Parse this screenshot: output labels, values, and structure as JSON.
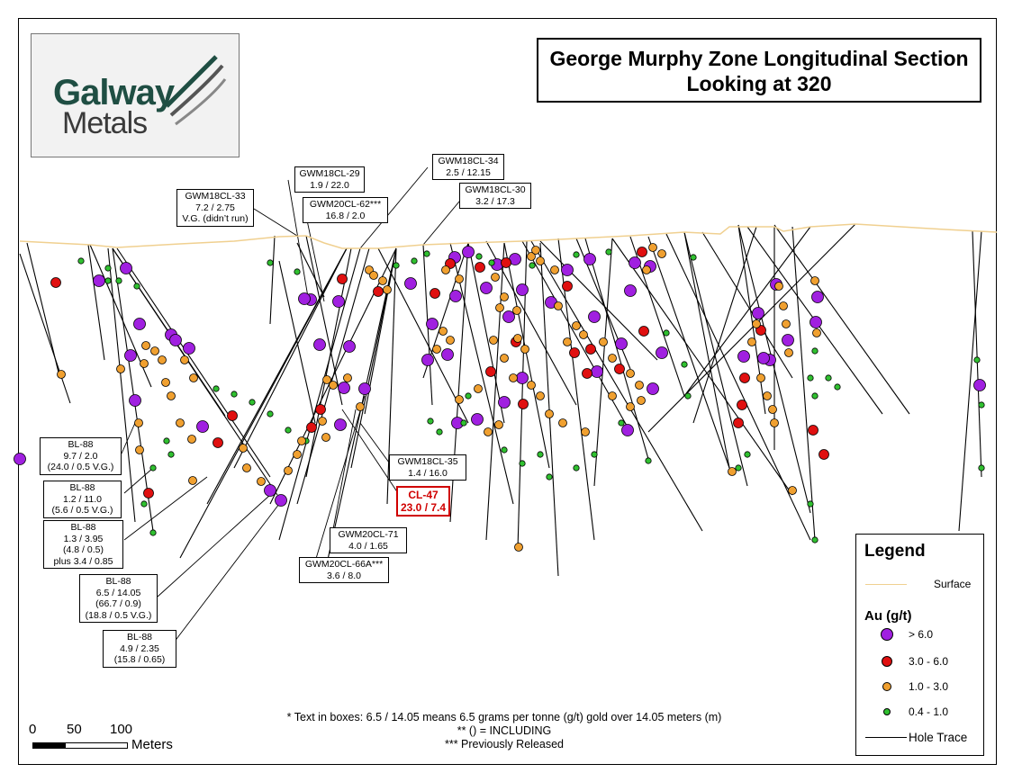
{
  "title": {
    "line1": "George Murphy Zone Longitudinal Section",
    "line2": "Looking at 320"
  },
  "logo": {
    "word1": "Galway",
    "word2": "Metals"
  },
  "callouts": [
    {
      "id": "gwm18cl33",
      "lines": [
        "GWM18CL-33",
        "7.2 / 2.75",
        "V.G. (didn’t run)"
      ]
    },
    {
      "id": "gwm18cl29",
      "lines": [
        "GWM18CL-29",
        "1.9 / 22.0"
      ]
    },
    {
      "id": "gwm20cl62",
      "lines": [
        "GWM20CL-62***",
        "16.8 / 2.0"
      ]
    },
    {
      "id": "gwm18cl34",
      "lines": [
        "GWM18CL-34",
        "2.5 / 12.15"
      ]
    },
    {
      "id": "gwm18cl30",
      "lines": [
        "GWM18CL-30",
        "3.2 / 17.3"
      ]
    },
    {
      "id": "bl88a",
      "lines": [
        "BL-88",
        "9.7 / 2.0",
        "(24.0 / 0.5 V.G.)"
      ]
    },
    {
      "id": "bl88b",
      "lines": [
        "BL-88",
        "1.2 / 11.0",
        "(5.6 / 0.5 V.G.)"
      ]
    },
    {
      "id": "bl88c",
      "lines": [
        "BL-88",
        "1.3 / 3.95",
        "(4.8 / 0.5)",
        "plus 3.4 / 0.85"
      ]
    },
    {
      "id": "bl88d",
      "lines": [
        "BL-88",
        "6.5 / 14.05",
        "(66.7 / 0.9)",
        "(18.8 / 0.5 V.G.)"
      ]
    },
    {
      "id": "bl88e",
      "lines": [
        "BL-88",
        "4.9 / 2.35",
        "(15.8 / 0.65)"
      ]
    },
    {
      "id": "gwm18cl35",
      "lines": [
        "GWM18CL-35",
        "1.4 / 16.0"
      ]
    },
    {
      "id": "cl47",
      "lines": [
        "CL-47",
        "23.0 / 7.4"
      ]
    },
    {
      "id": "gwm20cl71",
      "lines": [
        "GWM20CL-71",
        "4.0 / 1.65"
      ]
    },
    {
      "id": "gwm20cl66a",
      "lines": [
        "GWM20CL-66A***",
        "3.6 / 8.0"
      ]
    }
  ],
  "legend": {
    "title": "Legend",
    "surface_label": "Surface",
    "au_heading": "Au (g/t)",
    "classes": [
      {
        "label": "> 6.0",
        "color": "#a020e0"
      },
      {
        "label": "3.0 - 6.0",
        "color": "#e01010"
      },
      {
        "label": "1.0 - 3.0",
        "color": "#f0a030"
      },
      {
        "label": "0.4 - 1.0",
        "color": "#30c030"
      }
    ],
    "hole_trace_label": "Hole Trace",
    "surface_color": "#f0d090"
  },
  "notes": [
    "* Text in boxes: 6.5 / 14.05 means 6.5 grams per tonne (g/t) gold over 14.05 meters (m)",
    "** () = INCLUDING",
    "*** Previously Released"
  ],
  "scale": {
    "ticks": [
      "0",
      "50",
      "100"
    ],
    "units": "Meters"
  }
}
